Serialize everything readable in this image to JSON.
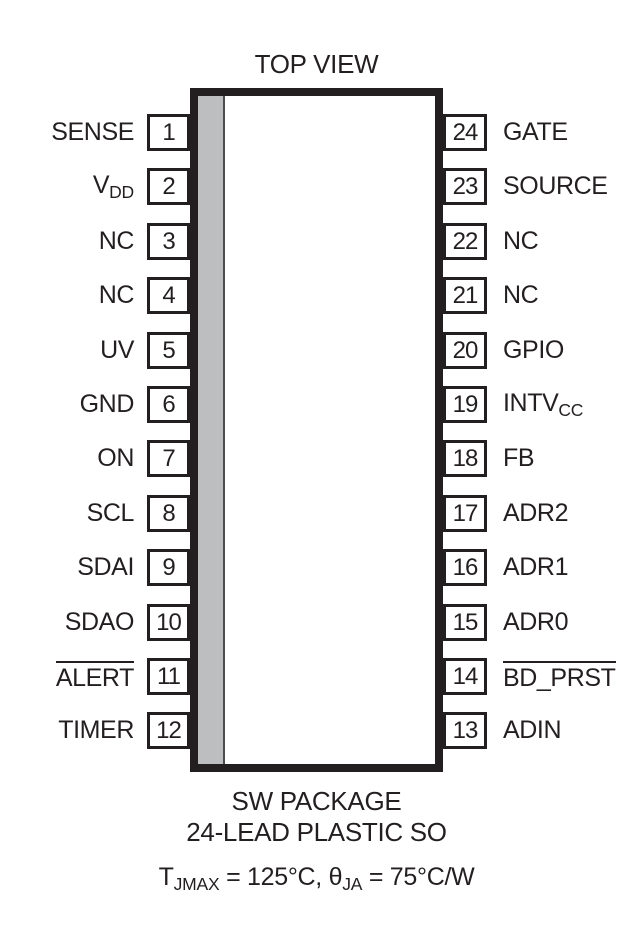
{
  "title": {
    "top_view": "TOP VIEW"
  },
  "package": {
    "name_line1": "SW PACKAGE",
    "name_line2": "24-LEAD PLASTIC SO",
    "thermal_parts": [
      {
        "t": "T"
      },
      {
        "t": "JMAX",
        "sub": true
      },
      {
        "t": " = 125°C, θ"
      },
      {
        "t": "JA",
        "sub": true
      },
      {
        "t": " = 75°C/W"
      }
    ],
    "colors": {
      "line_black": "#231f20",
      "strip_gray": "#bcbec0",
      "body_white": "#ffffff"
    }
  },
  "pins": {
    "left": [
      {
        "num": "1",
        "label": "SENSE"
      },
      {
        "num": "2",
        "label": "V",
        "sub": "DD"
      },
      {
        "num": "3",
        "label": "NC"
      },
      {
        "num": "4",
        "label": "NC"
      },
      {
        "num": "5",
        "label": "UV"
      },
      {
        "num": "6",
        "label": "GND"
      },
      {
        "num": "7",
        "label": "ON"
      },
      {
        "num": "8",
        "label": "SCL"
      },
      {
        "num": "9",
        "label": "SDAI"
      },
      {
        "num": "10",
        "label": "SDAO"
      },
      {
        "num": "11",
        "label": "ALERT",
        "overline": true
      },
      {
        "num": "12",
        "label": "TIMER"
      }
    ],
    "right": [
      {
        "num": "24",
        "label": "GATE"
      },
      {
        "num": "23",
        "label": "SOURCE"
      },
      {
        "num": "22",
        "label": "NC"
      },
      {
        "num": "21",
        "label": "NC"
      },
      {
        "num": "20",
        "label": "GPIO"
      },
      {
        "num": "19",
        "label": "INTV",
        "sub": "CC"
      },
      {
        "num": "18",
        "label": "FB"
      },
      {
        "num": "17",
        "label": "ADR2"
      },
      {
        "num": "16",
        "label": "ADR1"
      },
      {
        "num": "15",
        "label": "ADR0"
      },
      {
        "num": "14",
        "label": "BD_PRST",
        "overline": true
      },
      {
        "num": "13",
        "label": "ADIN"
      }
    ]
  }
}
